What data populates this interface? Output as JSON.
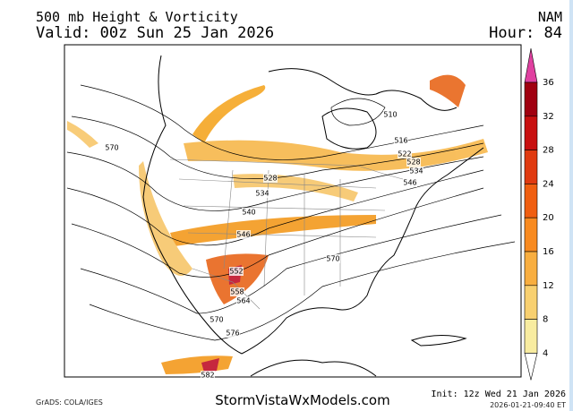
{
  "header": {
    "title": "500 mb Height & Vorticity",
    "valid": "Valid: 00z Sun 25 Jan 2026",
    "model": "NAM",
    "hour": "Hour: 84"
  },
  "contour_labels": [
    "570",
    "510",
    "516",
    "522",
    "528",
    "534",
    "546",
    "528",
    "534",
    "540",
    "546",
    "570",
    "552",
    "558",
    "564",
    "570",
    "576",
    "582"
  ],
  "colorbar": {
    "levels": [
      36,
      32,
      28,
      24,
      20,
      16,
      12,
      8,
      4
    ],
    "colors": [
      "#e040a0",
      "#a00010",
      "#c81010",
      "#e03a10",
      "#f05e10",
      "#f88a20",
      "#f8ae40",
      "#f8d070",
      "#f8ecA0"
    ]
  },
  "footer": {
    "credit": "GrADS: COLA/IGES",
    "site": "StormVistaWxModels.com",
    "init": "Init: 12z Wed 21 Jan 2026",
    "timestamp": "2026-01-21-09:40 ET"
  }
}
